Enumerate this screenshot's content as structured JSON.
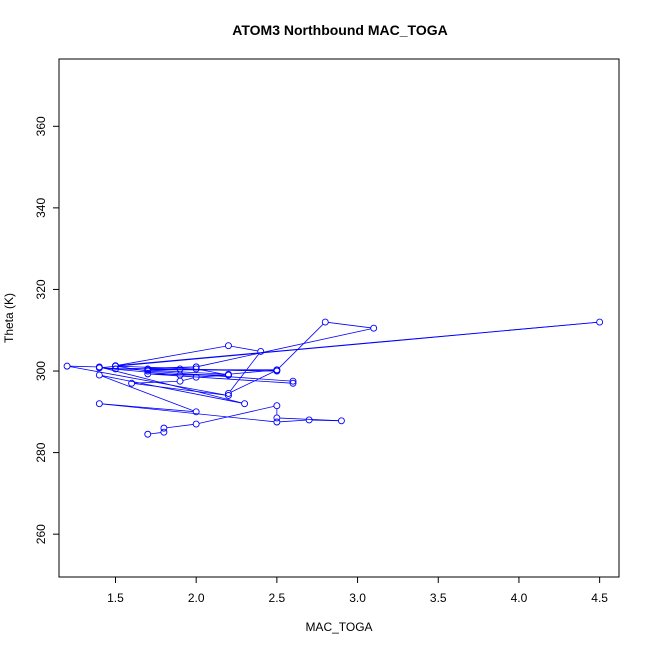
{
  "chart_data": {
    "type": "line",
    "title": "ATOM3 Northbound MAC_TOGA",
    "xlabel": "MAC_TOGA",
    "ylabel": "Theta (K)",
    "xlim": [
      1.15,
      4.62
    ],
    "ylim": [
      249.5,
      376.5
    ],
    "xticks": [
      "1.5",
      "2.0",
      "2.5",
      "3.0",
      "3.5",
      "4.0",
      "4.5"
    ],
    "yticks": [
      "260",
      "280",
      "300",
      "320",
      "340",
      "360"
    ],
    "grid": false,
    "legend": "none",
    "line_color": "#0000ff",
    "marker": "open-circle",
    "x": [
      1.7,
      1.8,
      1.8,
      2.0,
      2.5,
      2.5,
      2.9,
      2.7,
      2.5,
      1.4,
      2.0,
      1.4,
      2.3,
      1.4,
      1.2,
      2.2,
      1.6,
      1.9,
      2.0,
      2.2,
      2.0,
      1.5,
      1.7,
      2.6,
      2.6,
      1.7,
      2.2,
      1.9,
      1.4,
      1.5,
      2.0,
      1.7,
      2.5,
      1.9,
      1.7,
      2.5,
      2.2,
      1.4,
      4.5,
      1.5,
      2.2,
      2.4,
      2.2,
      2.5,
      2.8,
      3.1,
      2.0
    ],
    "y": [
      284.5,
      285,
      286,
      287,
      291.5,
      288.5,
      287.8,
      288,
      287.5,
      292,
      290,
      299,
      292,
      301,
      301.2,
      294,
      297,
      297.5,
      298.5,
      299,
      300.5,
      301.2,
      300,
      297.5,
      297,
      299.3,
      299,
      299,
      300.8,
      300.5,
      301,
      300.5,
      300,
      300.5,
      300.3,
      300.3,
      299.2,
      300.8,
      312,
      301.3,
      306.2,
      304.8,
      294.5,
      300.2,
      312,
      310.5,
      301
    ]
  }
}
